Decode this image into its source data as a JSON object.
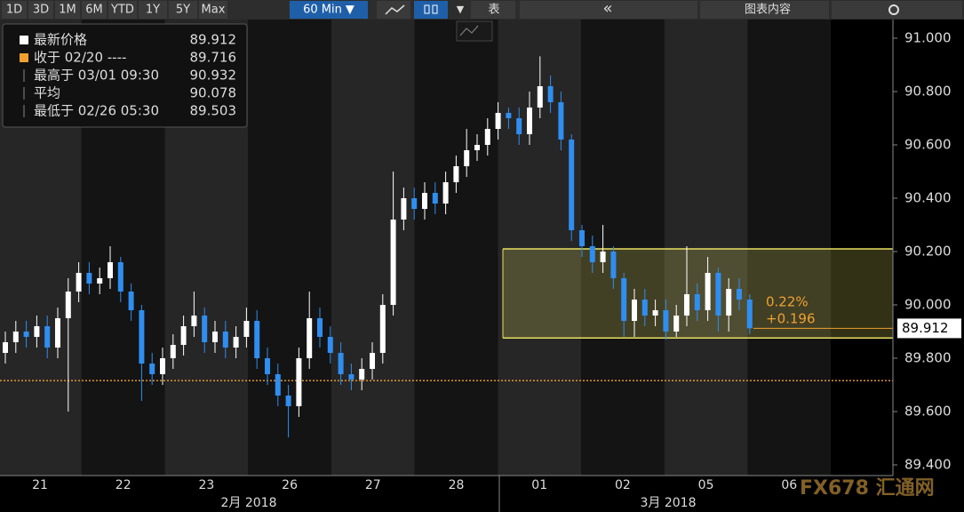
{
  "toolbar": {
    "ranges": [
      "1D",
      "3D",
      "1M",
      "6M",
      "YTD",
      "1Y",
      "5Y",
      "Max"
    ],
    "interval": "60 Min ▼",
    "table": "表",
    "collapse": "«",
    "contents": "图表内容"
  },
  "legend": [
    {
      "label": "最新价格",
      "value": 89.912
    },
    {
      "label": "收于 02/20 ----",
      "value": 89.716
    },
    {
      "label": "最高于 03/01 09:30",
      "value": 90.932
    },
    {
      "label": "平均",
      "value": 90.078
    },
    {
      "label": "最低于 02/26 05:30",
      "value": 89.503
    }
  ],
  "chart_data": {
    "type": "candlestick",
    "open": [
      89.82,
      89.86,
      89.9,
      89.88,
      89.92,
      89.84,
      89.95,
      90.05,
      90.12,
      90.08,
      90.1,
      90.16,
      90.05,
      89.98,
      89.78,
      89.74,
      89.8,
      89.85,
      89.92,
      89.96,
      89.86,
      89.9,
      89.84,
      89.88,
      89.94,
      89.8,
      89.74,
      89.66,
      89.62,
      89.8,
      89.95,
      89.88,
      89.82,
      89.74,
      89.72,
      89.76,
      89.82,
      90.0,
      90.32,
      90.4,
      90.36,
      90.42,
      90.38,
      90.46,
      90.52,
      90.58,
      90.6,
      90.66,
      90.72,
      90.7,
      90.64,
      90.74,
      90.82,
      90.76,
      90.62,
      90.28,
      90.22,
      90.16,
      90.2,
      90.1,
      89.94,
      90.02,
      89.96,
      89.98,
      89.9,
      89.96,
      90.04,
      89.98,
      90.12,
      89.96,
      90.06,
      90.02
    ],
    "high": [
      89.9,
      89.94,
      89.94,
      89.96,
      89.96,
      89.99,
      90.1,
      90.16,
      90.16,
      90.14,
      90.22,
      90.18,
      90.08,
      90.0,
      89.82,
      89.84,
      89.89,
      89.96,
      90.05,
      89.99,
      89.94,
      89.94,
      89.92,
      89.99,
      89.98,
      89.84,
      89.78,
      89.7,
      89.84,
      90.05,
      89.99,
      89.92,
      89.86,
      89.78,
      89.8,
      89.86,
      90.04,
      90.5,
      90.44,
      90.44,
      90.46,
      90.46,
      90.5,
      90.56,
      90.66,
      90.64,
      90.7,
      90.76,
      90.74,
      90.74,
      90.8,
      90.932,
      90.86,
      90.8,
      90.64,
      90.3,
      90.26,
      90.3,
      90.22,
      90.12,
      90.06,
      90.06,
      90.02,
      90.02,
      90.0,
      90.22,
      90.08,
      90.18,
      90.14,
      90.1,
      90.1,
      90.04
    ],
    "low": [
      89.78,
      89.82,
      89.84,
      89.84,
      89.8,
      89.8,
      89.6,
      90.01,
      90.04,
      90.04,
      90.06,
      90.01,
      89.94,
      89.64,
      89.7,
      89.7,
      89.76,
      89.81,
      89.88,
      89.82,
      89.82,
      89.8,
      89.8,
      89.84,
      89.76,
      89.7,
      89.62,
      89.503,
      89.58,
      89.76,
      89.84,
      89.78,
      89.7,
      89.68,
      89.68,
      89.72,
      89.78,
      89.96,
      90.28,
      90.32,
      90.32,
      90.34,
      90.34,
      90.42,
      90.48,
      90.54,
      90.56,
      90.62,
      90.66,
      90.6,
      90.6,
      90.7,
      90.72,
      90.58,
      90.24,
      90.18,
      90.12,
      90.12,
      90.06,
      89.88,
      89.88,
      89.92,
      89.92,
      89.87,
      89.88,
      89.92,
      89.94,
      89.94,
      89.9,
      89.9,
      89.98,
      89.89
    ],
    "close": [
      89.86,
      89.9,
      89.88,
      89.92,
      89.84,
      89.95,
      90.05,
      90.12,
      90.08,
      90.1,
      90.16,
      90.05,
      89.98,
      89.78,
      89.74,
      89.8,
      89.85,
      89.92,
      89.96,
      89.86,
      89.9,
      89.84,
      89.88,
      89.94,
      89.8,
      89.74,
      89.66,
      89.62,
      89.8,
      89.95,
      89.88,
      89.82,
      89.74,
      89.72,
      89.76,
      89.82,
      90.0,
      90.32,
      90.4,
      90.36,
      90.42,
      90.38,
      90.46,
      90.52,
      90.58,
      90.6,
      90.66,
      90.72,
      90.7,
      90.64,
      90.74,
      90.82,
      90.76,
      90.62,
      90.28,
      90.22,
      90.16,
      90.2,
      90.1,
      89.94,
      90.02,
      89.96,
      89.98,
      89.9,
      89.96,
      90.04,
      89.98,
      90.12,
      89.96,
      90.06,
      90.02,
      89.912
    ],
    "up_color": "#ffffff",
    "down_color": "#2f8ef0",
    "ylim": [
      89.36,
      91.07
    ],
    "yticks": [
      {
        "value": 89.4,
        "label": "89.400"
      },
      {
        "value": 89.6,
        "label": "89.600"
      },
      {
        "value": 89.8,
        "label": "89.800"
      },
      {
        "value": 90.0,
        "label": "90.000"
      },
      {
        "value": 90.2,
        "label": "90.200"
      },
      {
        "value": 90.4,
        "label": "90.400"
      },
      {
        "value": 90.6,
        "label": "90.600"
      },
      {
        "value": 90.8,
        "label": "90.800"
      },
      {
        "value": 91.0,
        "label": "91.000"
      }
    ],
    "days": [
      "21",
      "22",
      "23",
      "26",
      "27",
      "28",
      "01",
      "02",
      "05",
      "06"
    ],
    "months": [
      "2月 2018",
      "3月 2018"
    ],
    "prev_close": 89.716,
    "prev_close_color": "#f0a030",
    "channel": {
      "upper": 90.21,
      "lower": 89.876,
      "color": "#e8e060"
    },
    "last": 89.912,
    "change_pct": "0.22%",
    "change": "+0.196"
  },
  "watermark": "FX678 汇通网"
}
